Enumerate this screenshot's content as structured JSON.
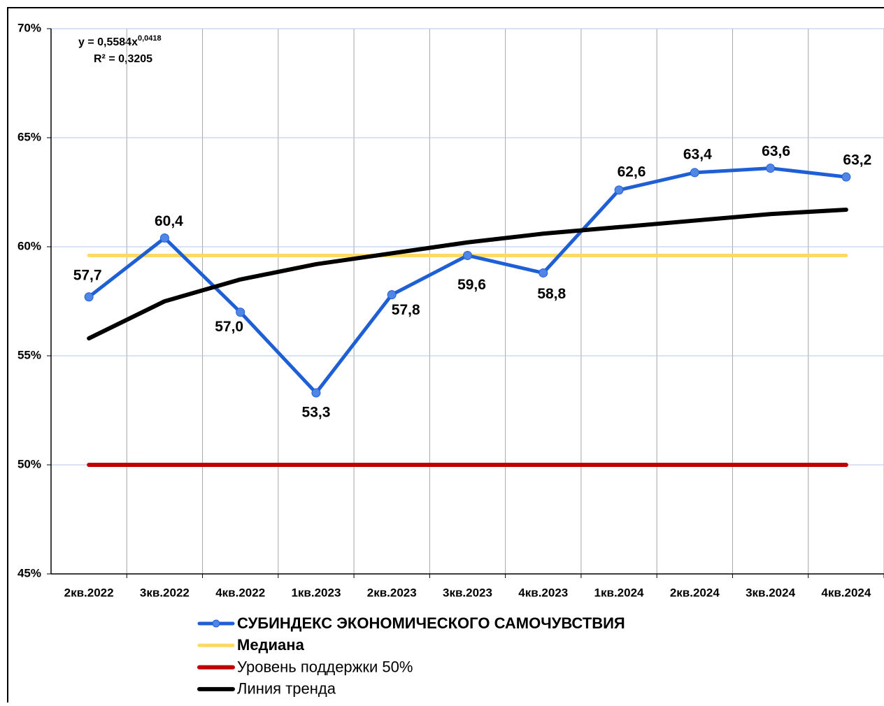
{
  "chart_data": {
    "type": "line",
    "categories": [
      "2кв.2022",
      "3кв.2022",
      "4кв.2022",
      "1кв.2023",
      "2кв.2023",
      "3кв.2023",
      "4кв.2023",
      "1кв.2024",
      "2кв.2024",
      "3кв.2024",
      "4кв.2024"
    ],
    "series": [
      {
        "name": "СУБИНДЕКС ЭКОНОМИЧЕСКОГО САМОЧУВСТВИЯ",
        "color": "#1f5fd6",
        "markers": true,
        "values": [
          57.7,
          60.4,
          57.0,
          53.3,
          57.8,
          59.6,
          58.8,
          62.6,
          63.4,
          63.6,
          63.2
        ],
        "value_labels": [
          "57,7",
          "60,4",
          "57,0",
          "53,3",
          "57,8",
          "59,6",
          "58,8",
          "62,6",
          "63,4",
          "63,6",
          "63,2"
        ]
      },
      {
        "name": "Медиана",
        "color": "#ffd966",
        "values": [
          59.6,
          59.6,
          59.6,
          59.6,
          59.6,
          59.6,
          59.6,
          59.6,
          59.6,
          59.6,
          59.6
        ]
      },
      {
        "name": "Уровень поддержки 50%",
        "color": "#c00000",
        "values": [
          50,
          50,
          50,
          50,
          50,
          50,
          50,
          50,
          50,
          50,
          50
        ]
      },
      {
        "name": "Линия тренда",
        "color": "#000000",
        "values": [
          55.8,
          57.5,
          58.5,
          59.2,
          59.7,
          60.2,
          60.6,
          60.9,
          61.2,
          61.5,
          61.7
        ]
      }
    ],
    "ylim": [
      45,
      70
    ],
    "yticks": [
      {
        "value": 45,
        "label": "45%"
      },
      {
        "value": 50,
        "label": "50%"
      },
      {
        "value": 55,
        "label": "55%"
      },
      {
        "value": 60,
        "label": "60%"
      },
      {
        "value": 65,
        "label": "65%"
      },
      {
        "value": 70,
        "label": "70%"
      }
    ],
    "grid": true,
    "annotations": {
      "equation": "y = 0,5584x",
      "equation_exponent": "0,0418",
      "r_squared": "R² = 0,3205"
    }
  }
}
